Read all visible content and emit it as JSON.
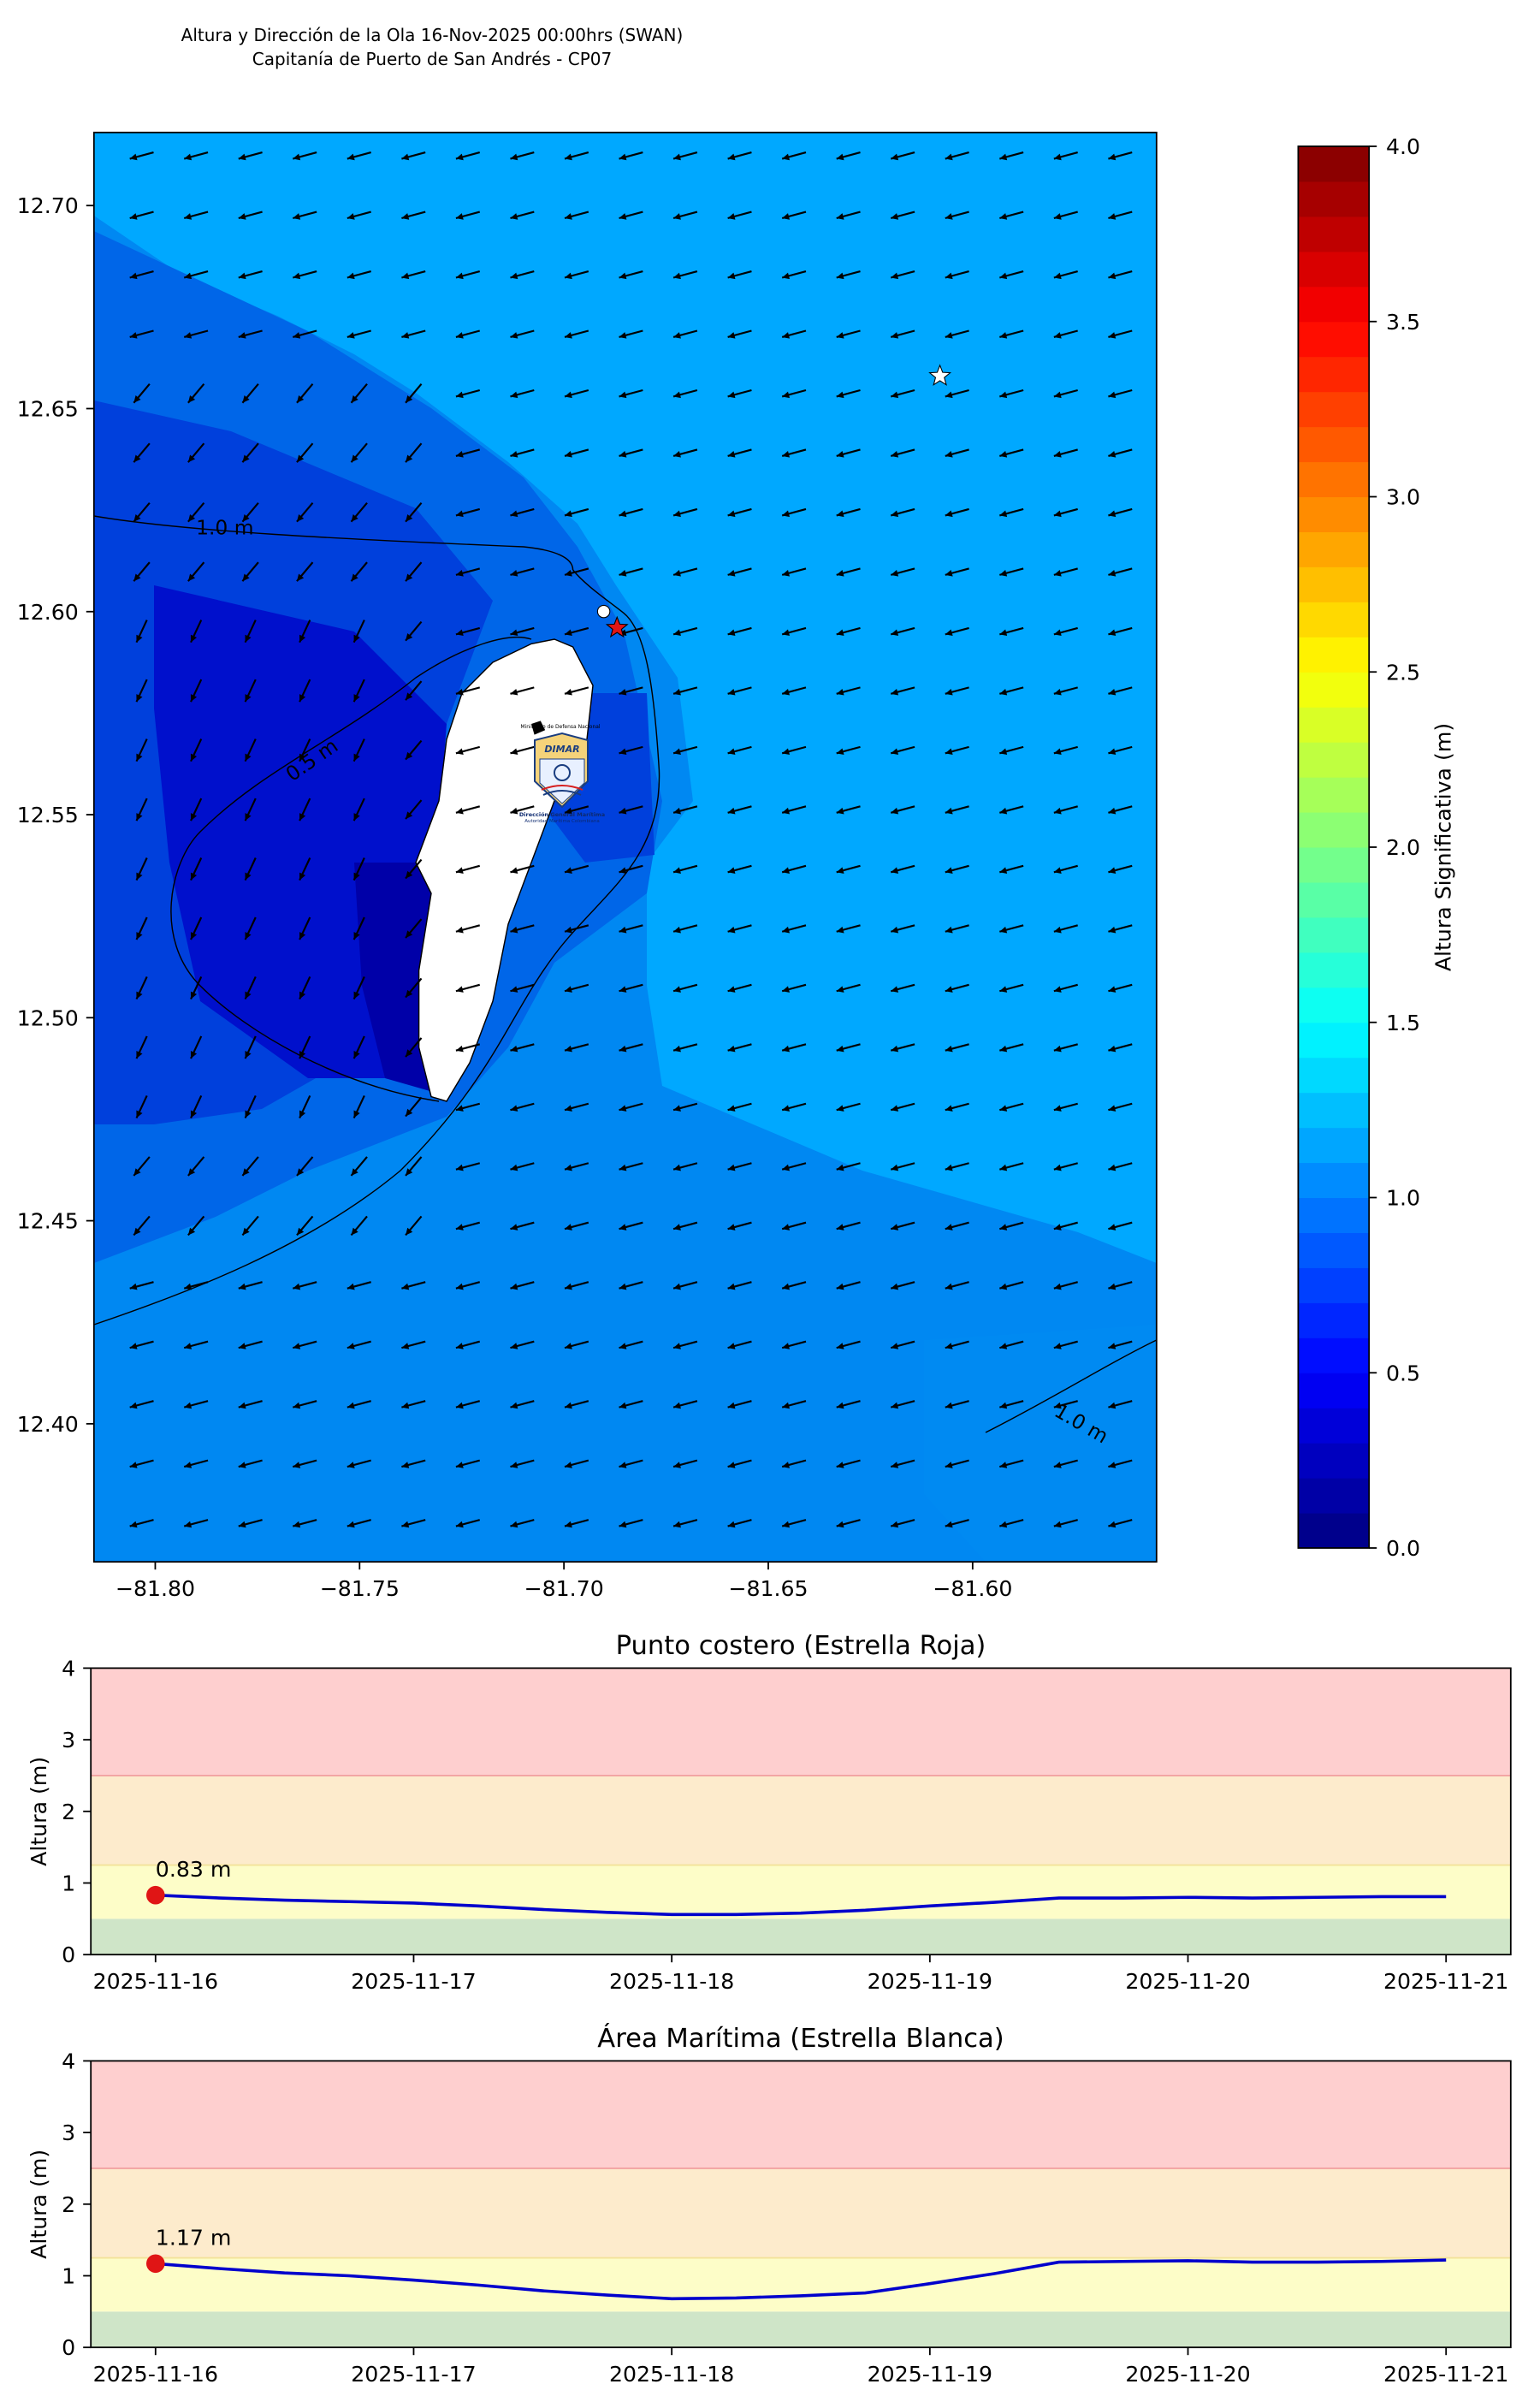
{
  "title_line1": "Altura y Dirección de la Ola 16-Nov-2025 00:00hrs (SWAN)",
  "title_line2": "Capitanía de Puerto de San Andrés - CP07",
  "colors": {
    "green_band": "#cfe5c8",
    "yellow_band": "#fdfdc8",
    "orange_band": "#fdebcc",
    "red_band": "#fecfcf",
    "series_line": "#0000cc",
    "marker": "#e01515"
  },
  "logo": {
    "top_text": "Ministerio de Defensa Nacional",
    "brand": "DIMAR",
    "line1": "Dirección General Marítima",
    "line2": "Autoridad Marítima Colombiana"
  },
  "chart_data": [
    {
      "type": "heatmap",
      "title": "",
      "x_ticks": [
        "−81.80",
        "−81.75",
        "−81.70",
        "−81.65",
        "−81.60"
      ],
      "x_tick_values": [
        -81.8,
        -81.75,
        -81.7,
        -81.65,
        -81.6
      ],
      "y_ticks": [
        "12.40",
        "12.45",
        "12.50",
        "12.55",
        "12.60",
        "12.65",
        "12.70"
      ],
      "y_tick_values": [
        12.4,
        12.45,
        12.5,
        12.55,
        12.6,
        12.65,
        12.7
      ],
      "xlim": [
        -81.815,
        -81.555
      ],
      "ylim": [
        12.366,
        12.718
      ],
      "field": "Altura Significativa (m)",
      "contours": [
        {
          "label": "1.0 m",
          "level": 1.0
        },
        {
          "label": "0.5 m",
          "level": 0.5
        },
        {
          "label": "1.0 m",
          "level": 1.0
        }
      ],
      "wave_direction": "from northeast toward southwest",
      "markers": [
        {
          "name": "Estrella Roja",
          "lon": -81.687,
          "lat": 12.596,
          "color": "red"
        },
        {
          "name": "Estrella Blanca",
          "lon": -81.608,
          "lat": 12.658,
          "color": "white"
        }
      ],
      "colorbar": {
        "label": "Altura Significativa (m)",
        "range": [
          0.0,
          4.0
        ],
        "ticks": [
          "0.0",
          "0.5",
          "1.0",
          "1.5",
          "2.0",
          "2.5",
          "3.0",
          "3.5",
          "4.0"
        ],
        "tick_values": [
          0.0,
          0.5,
          1.0,
          1.5,
          2.0,
          2.5,
          3.0,
          3.5,
          4.0
        ]
      }
    },
    {
      "type": "line",
      "title": "Punto costero (Estrella Roja)",
      "ylabel": "Altura (m)",
      "xlabel": "",
      "ylim": [
        0,
        4
      ],
      "y_ticks": [
        "0",
        "1",
        "2",
        "3",
        "4"
      ],
      "x_ticks": [
        "2025-11-16",
        "2025-11-17",
        "2025-11-18",
        "2025-11-19",
        "2025-11-20",
        "2025-11-21"
      ],
      "bands": [
        [
          0,
          0.5
        ],
        [
          0.5,
          1.25
        ],
        [
          1.25,
          2.5
        ],
        [
          2.5,
          4
        ]
      ],
      "x": [
        "2025-11-16 00:00",
        "2025-11-16 06:00",
        "2025-11-16 12:00",
        "2025-11-16 18:00",
        "2025-11-17 00:00",
        "2025-11-17 06:00",
        "2025-11-17 12:00",
        "2025-11-17 18:00",
        "2025-11-18 00:00",
        "2025-11-18 06:00",
        "2025-11-18 12:00",
        "2025-11-18 18:00",
        "2025-11-19 00:00",
        "2025-11-19 06:00",
        "2025-11-19 12:00",
        "2025-11-19 18:00",
        "2025-11-20 00:00",
        "2025-11-20 06:00",
        "2025-11-20 12:00",
        "2025-11-20 18:00",
        "2025-11-21 00:00"
      ],
      "values": [
        0.83,
        0.79,
        0.76,
        0.74,
        0.72,
        0.68,
        0.63,
        0.59,
        0.56,
        0.56,
        0.58,
        0.62,
        0.68,
        0.73,
        0.79,
        0.79,
        0.8,
        0.79,
        0.8,
        0.81,
        0.81
      ],
      "annotation": "0.83 m"
    },
    {
      "type": "line",
      "title": "Área Marítima (Estrella Blanca)",
      "ylabel": "Altura (m)",
      "xlabel": "",
      "ylim": [
        0,
        4
      ],
      "y_ticks": [
        "0",
        "1",
        "2",
        "3",
        "4"
      ],
      "x_ticks": [
        "2025-11-16",
        "2025-11-17",
        "2025-11-18",
        "2025-11-19",
        "2025-11-20",
        "2025-11-21"
      ],
      "bands": [
        [
          0,
          0.5
        ],
        [
          0.5,
          1.25
        ],
        [
          1.25,
          2.5
        ],
        [
          2.5,
          4
        ]
      ],
      "x": [
        "2025-11-16 00:00",
        "2025-11-16 06:00",
        "2025-11-16 12:00",
        "2025-11-16 18:00",
        "2025-11-17 00:00",
        "2025-11-17 06:00",
        "2025-11-17 12:00",
        "2025-11-17 18:00",
        "2025-11-18 00:00",
        "2025-11-18 06:00",
        "2025-11-18 12:00",
        "2025-11-18 18:00",
        "2025-11-19 00:00",
        "2025-11-19 06:00",
        "2025-11-19 12:00",
        "2025-11-19 18:00",
        "2025-11-20 00:00",
        "2025-11-20 06:00",
        "2025-11-20 12:00",
        "2025-11-20 18:00",
        "2025-11-21 00:00"
      ],
      "values": [
        1.17,
        1.1,
        1.04,
        1.0,
        0.94,
        0.87,
        0.79,
        0.73,
        0.68,
        0.69,
        0.72,
        0.76,
        0.89,
        1.03,
        1.19,
        1.2,
        1.21,
        1.19,
        1.19,
        1.2,
        1.22
      ],
      "annotation": "1.17 m"
    }
  ]
}
